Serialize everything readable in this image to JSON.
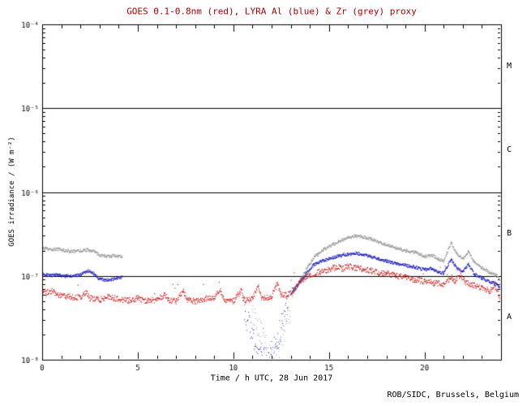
{
  "footer": "ROB/SIDC, Brussels, Belgium",
  "chart_data": {
    "type": "line",
    "title": "GOES 0.1-0.8nm (red), LYRA Al (blue) & Zr (grey) proxy",
    "title_color": "#aa0000",
    "xlabel": "Time / h UTC, 28 Jun 2017",
    "ylabel": "GOES irradiance / (W m⁻²)",
    "xlim": [
      0,
      24
    ],
    "ylim": [
      1e-08,
      0.0001
    ],
    "ylim_log": [
      -8,
      -4
    ],
    "x_major_ticks": [
      0,
      5,
      10,
      15,
      20
    ],
    "x_tick_labels": [
      "0",
      "5",
      "10",
      "15",
      "20"
    ],
    "x_minor_step": 1,
    "y_decades": [
      -8,
      -7,
      -6,
      -5,
      -4
    ],
    "y_tick_labels": [
      "10⁻⁸",
      "10⁻⁷",
      "10⁻⁶",
      "10⁻⁵",
      "10⁻⁴"
    ],
    "hlines": [
      1e-07,
      1e-06,
      1e-05
    ],
    "grid": false,
    "class_labels": [
      {
        "label": "M",
        "band_log": [
          -5,
          -4
        ]
      },
      {
        "label": "C",
        "band_log": [
          -6,
          -5
        ]
      },
      {
        "label": "B",
        "band_log": [
          -7,
          -6
        ]
      },
      {
        "label": "A",
        "band_log": [
          -8,
          -7
        ]
      }
    ],
    "series": [
      {
        "name": "Zr (grey) proxy",
        "color": "#999999",
        "segments": [
          {
            "noise": 0.018,
            "step": 0.02,
            "size": 1.3,
            "points": [
              [
                0,
                2.15e-07
              ],
              [
                0.4,
                2.05e-07
              ],
              [
                0.8,
                2.1e-07
              ],
              [
                1.2,
                2e-07
              ],
              [
                1.6,
                1.95e-07
              ],
              [
                2.0,
                1.98e-07
              ],
              [
                2.4,
                2.05e-07
              ],
              [
                2.7,
                1.95e-07
              ],
              [
                3.0,
                1.78e-07
              ],
              [
                3.4,
                1.7e-07
              ],
              [
                3.8,
                1.74e-07
              ],
              [
                4.2,
                1.72e-07
              ]
            ]
          },
          {
            "noise": 0.15,
            "step": 0.025,
            "size": 1.0,
            "points": [
              [
                11.0,
                3.8e-08
              ],
              [
                11.4,
                2.2e-08
              ],
              [
                11.8,
                1.3e-08
              ],
              [
                12.1,
                1e-08
              ],
              [
                12.4,
                1.4e-08
              ],
              [
                12.7,
                2.4e-08
              ],
              [
                13.0,
                4.2e-08
              ]
            ]
          },
          {
            "noise": 0.018,
            "step": 0.02,
            "size": 1.3,
            "points": [
              [
                13.1,
                6e-08
              ],
              [
                13.5,
                9e-08
              ],
              [
                13.9,
                1.3e-07
              ],
              [
                14.3,
                1.75e-07
              ],
              [
                14.7,
                2.05e-07
              ],
              [
                15.1,
                2.3e-07
              ],
              [
                15.5,
                2.55e-07
              ],
              [
                16.0,
                2.85e-07
              ],
              [
                16.4,
                3e-07
              ],
              [
                16.8,
                2.9e-07
              ],
              [
                17.2,
                2.75e-07
              ],
              [
                17.6,
                2.55e-07
              ],
              [
                18.0,
                2.35e-07
              ],
              [
                18.5,
                2.15e-07
              ],
              [
                19.0,
                2e-07
              ],
              [
                19.5,
                1.9e-07
              ],
              [
                20.0,
                1.7e-07
              ],
              [
                20.4,
                1.75e-07
              ],
              [
                20.7,
                1.6e-07
              ],
              [
                21.0,
                1.5e-07
              ],
              [
                21.4,
                2.5e-07
              ],
              [
                21.7,
                1.8e-07
              ],
              [
                22.0,
                1.6e-07
              ],
              [
                22.3,
                1.95e-07
              ],
              [
                22.6,
                1.45e-07
              ],
              [
                23.0,
                1.25e-07
              ],
              [
                23.4,
                1.1e-07
              ],
              [
                23.8,
                1e-07
              ],
              [
                24,
                8.5e-08
              ]
            ]
          }
        ]
      },
      {
        "name": "LYRA Al (blue)",
        "color": "#2222bb",
        "segments": [
          {
            "noise": 0.018,
            "step": 0.02,
            "size": 1.3,
            "points": [
              [
                0,
                1.06e-07
              ],
              [
                0.4,
                1e-07
              ],
              [
                0.8,
                1.03e-07
              ],
              [
                1.2,
                9.9e-08
              ],
              [
                1.6,
                1e-07
              ],
              [
                2.0,
                1.02e-07
              ],
              [
                2.4,
                1.15e-07
              ],
              [
                2.7,
                1.06e-07
              ],
              [
                3.0,
                9.2e-08
              ],
              [
                3.4,
                8.8e-08
              ],
              [
                3.8,
                9.3e-08
              ],
              [
                4.2,
                9.6e-08
              ]
            ]
          },
          {
            "noise": 0.15,
            "step": 0.025,
            "size": 1.0,
            "points": [
              [
                10.5,
                4.5e-08
              ],
              [
                10.8,
                2.6e-08
              ],
              [
                11.1,
                1.6e-08
              ],
              [
                11.4,
                1.1e-08
              ],
              [
                11.8,
                1e-08
              ],
              [
                12.1,
                1.3e-08
              ],
              [
                12.4,
                2e-08
              ],
              [
                12.7,
                3.5e-08
              ],
              [
                12.9,
                5e-08
              ]
            ]
          },
          {
            "noise": 0.018,
            "step": 0.02,
            "size": 1.3,
            "points": [
              [
                13.0,
                6e-08
              ],
              [
                13.4,
                8e-08
              ],
              [
                13.8,
                1.05e-07
              ],
              [
                14.2,
                1.35e-07
              ],
              [
                14.6,
                1.5e-07
              ],
              [
                15.0,
                1.6e-07
              ],
              [
                15.5,
                1.72e-07
              ],
              [
                16.0,
                1.8e-07
              ],
              [
                16.4,
                1.86e-07
              ],
              [
                16.8,
                1.8e-07
              ],
              [
                17.2,
                1.7e-07
              ],
              [
                17.6,
                1.6e-07
              ],
              [
                18.0,
                1.5e-07
              ],
              [
                18.5,
                1.4e-07
              ],
              [
                19.0,
                1.33e-07
              ],
              [
                19.5,
                1.27e-07
              ],
              [
                20.0,
                1.18e-07
              ],
              [
                20.4,
                1.22e-07
              ],
              [
                20.7,
                1.12e-07
              ],
              [
                21.0,
                1.08e-07
              ],
              [
                21.4,
                1.58e-07
              ],
              [
                21.7,
                1.22e-07
              ],
              [
                22.0,
                1.12e-07
              ],
              [
                22.3,
                1.38e-07
              ],
              [
                22.6,
                1.05e-07
              ],
              [
                23.0,
                9.4e-08
              ],
              [
                23.4,
                8.6e-08
              ],
              [
                23.8,
                8e-08
              ],
              [
                24,
                6.8e-08
              ]
            ]
          }
        ]
      },
      {
        "name": "GOES 0.1-0.8nm (red)",
        "color": "#cc2222",
        "segments": [
          {
            "noise": 0.035,
            "step": 0.02,
            "size": 1.2,
            "spike_p": 0.01,
            "spike_amp": 0.2,
            "points": [
              [
                0,
                7.2e-08
              ],
              [
                0.2,
                6.2e-08
              ],
              [
                0.5,
                6.6e-08
              ],
              [
                0.8,
                6e-08
              ],
              [
                1.2,
                5.8e-08
              ],
              [
                1.6,
                5.5e-08
              ],
              [
                2.0,
                5.6e-08
              ],
              [
                2.3,
                6.3e-08
              ],
              [
                2.5,
                5.4e-08
              ],
              [
                3.0,
                5.2e-08
              ],
              [
                3.5,
                5.6e-08
              ],
              [
                4.0,
                5.3e-08
              ],
              [
                4.5,
                5.1e-08
              ],
              [
                5.0,
                5.4e-08
              ],
              [
                5.5,
                5e-08
              ],
              [
                6.0,
                5.2e-08
              ],
              [
                6.4,
                6e-08
              ],
              [
                6.6,
                5.1e-08
              ],
              [
                7.0,
                5e-08
              ],
              [
                7.4,
                6.6e-08
              ],
              [
                7.6,
                5.2e-08
              ],
              [
                8.0,
                5e-08
              ],
              [
                8.5,
                5.3e-08
              ],
              [
                9.0,
                5.5e-08
              ],
              [
                9.3,
                7e-08
              ],
              [
                9.5,
                5.2e-08
              ],
              [
                10.0,
                5e-08
              ],
              [
                10.4,
                6.6e-08
              ],
              [
                10.6,
                5.1e-08
              ],
              [
                11.0,
                5.3e-08
              ],
              [
                11.3,
                7.6e-08
              ],
              [
                11.5,
                5.4e-08
              ],
              [
                12.0,
                5.6e-08
              ],
              [
                12.3,
                8e-08
              ],
              [
                12.5,
                6e-08
              ],
              [
                12.8,
                5.8e-08
              ],
              [
                13.2,
                7e-08
              ],
              [
                13.6,
                8.8e-08
              ],
              [
                14.0,
                1.02e-07
              ],
              [
                14.5,
                1.12e-07
              ],
              [
                15.0,
                1.18e-07
              ],
              [
                15.4,
                1.28e-07
              ],
              [
                15.7,
                1.22e-07
              ],
              [
                16.0,
                1.3e-07
              ],
              [
                16.4,
                1.24e-07
              ],
              [
                16.8,
                1.2e-07
              ],
              [
                17.2,
                1.15e-07
              ],
              [
                17.6,
                1.1e-07
              ],
              [
                18.0,
                1.06e-07
              ],
              [
                18.5,
                1e-07
              ],
              [
                19.0,
                9.6e-08
              ],
              [
                19.5,
                9e-08
              ],
              [
                20.0,
                8.6e-08
              ],
              [
                20.5,
                8.2e-08
              ],
              [
                21.0,
                8e-08
              ],
              [
                21.4,
                9.6e-08
              ],
              [
                21.6,
                8.6e-08
              ],
              [
                21.9,
                1.04e-07
              ],
              [
                22.1,
                8.4e-08
              ],
              [
                22.5,
                7.8e-08
              ],
              [
                23.0,
                7.2e-08
              ],
              [
                23.4,
                6.6e-08
              ],
              [
                23.7,
                7.4e-08
              ],
              [
                24,
                5.2e-08
              ]
            ]
          }
        ]
      }
    ]
  }
}
